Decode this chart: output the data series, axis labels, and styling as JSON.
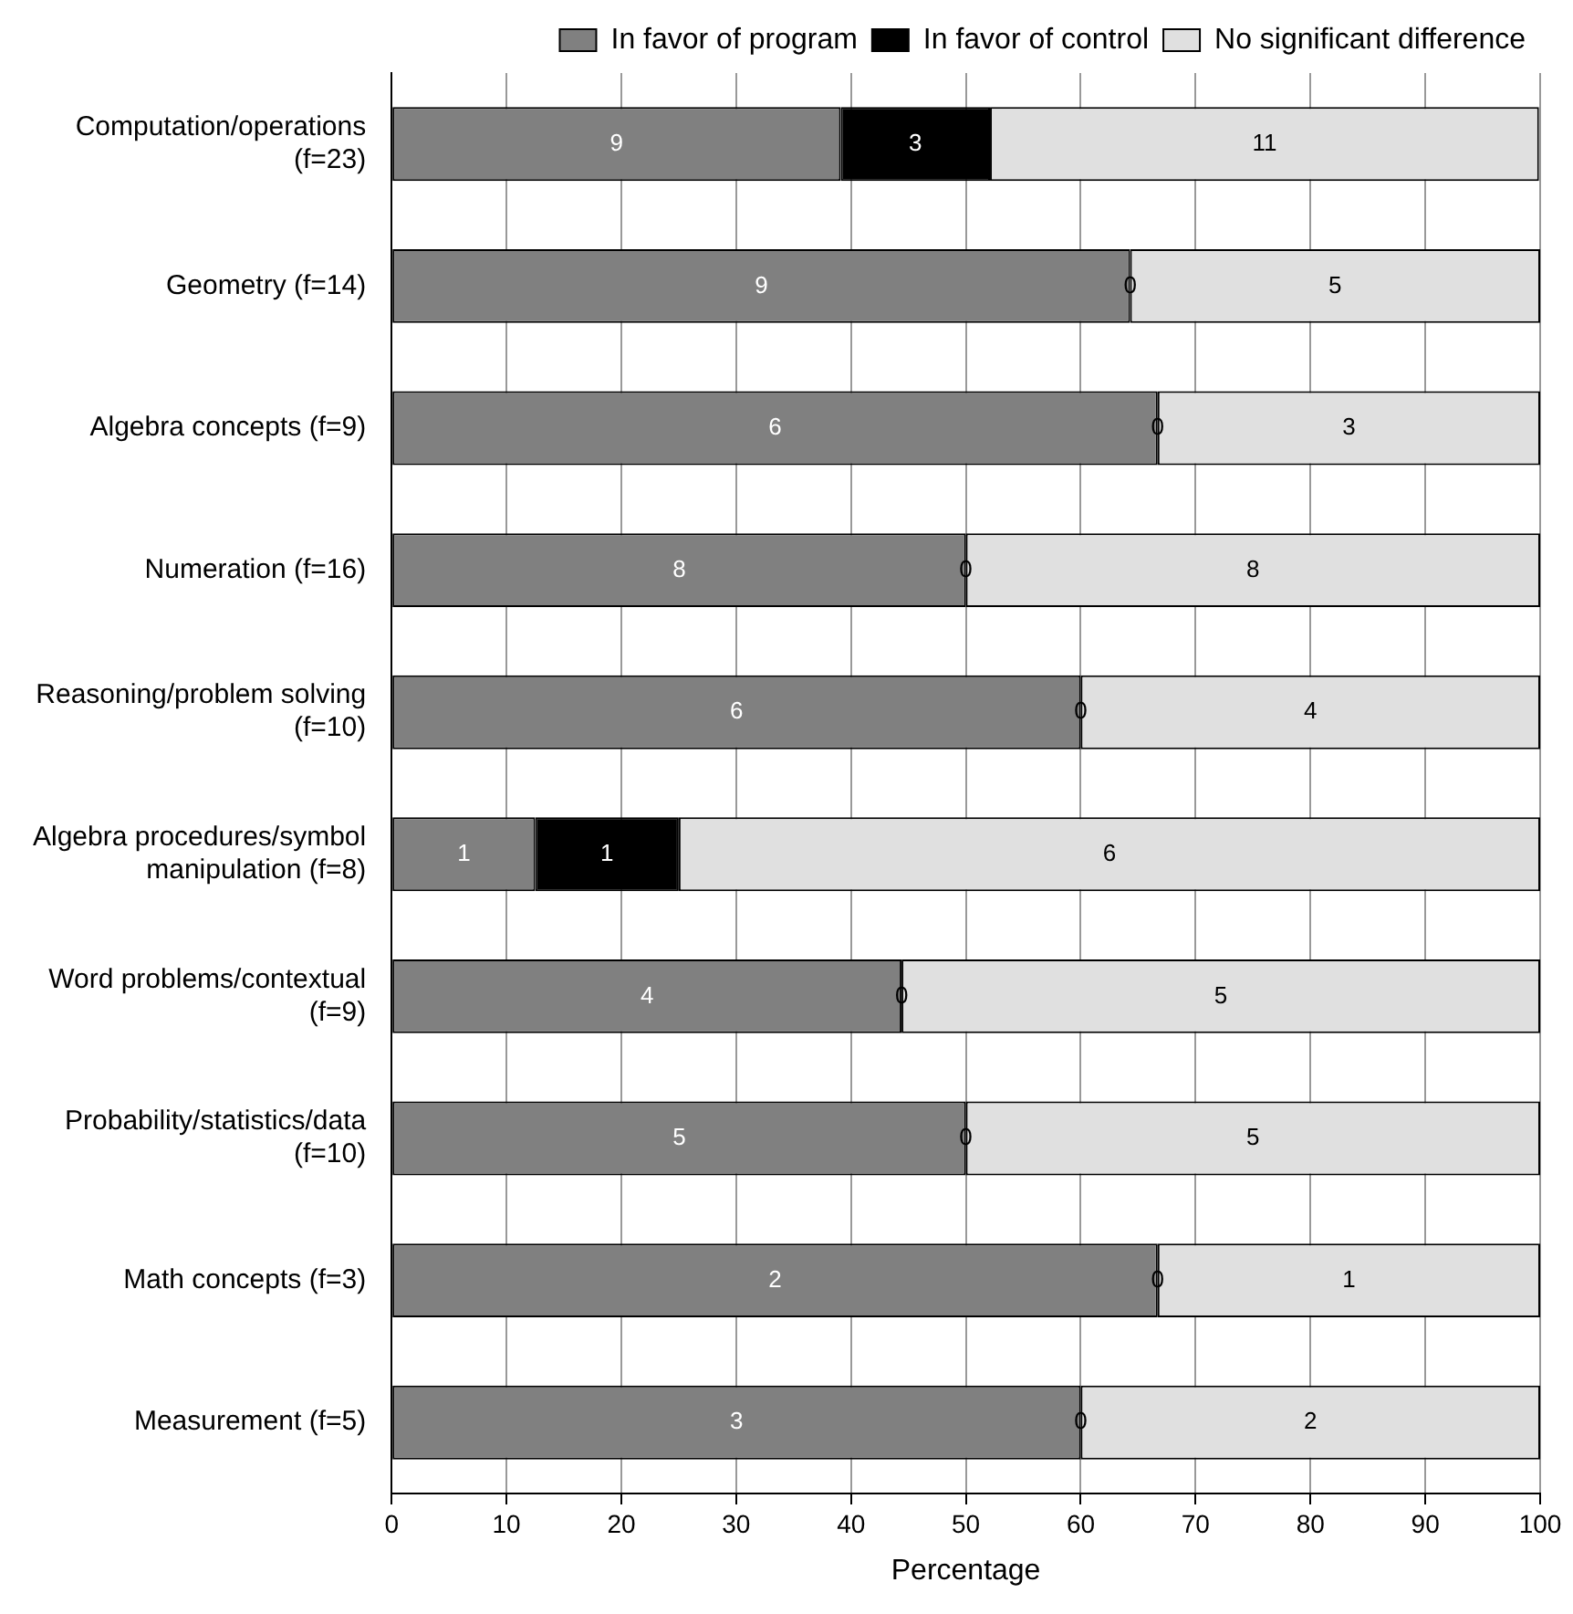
{
  "chart_data": {
    "type": "bar",
    "orientation": "horizontal",
    "stacked": true,
    "xlabel": "Percentage",
    "categories": [
      "Computation/operations\n(f=23)",
      "Geometry (f=14)",
      "Algebra concepts (f=9)",
      "Numeration (f=16)",
      "Reasoning/problem solving\n(f=10)",
      "Algebra procedures/symbol\nmanipulation (f=8)",
      "Word problems/contextual\n(f=9)",
      "Probability/statistics/data\n(f=10)",
      "Math concepts (f=3)",
      "Measurement (f=5)"
    ],
    "series": [
      {
        "name": "In favor of program",
        "color": "#808080",
        "values": [
          39.1,
          64.3,
          66.7,
          50,
          60,
          12.5,
          44.4,
          50,
          66.7,
          60
        ]
      },
      {
        "name": "In favor of control",
        "color": "#000000",
        "values": [
          13.0,
          0,
          0,
          0,
          0,
          12.5,
          0,
          0,
          0,
          0
        ]
      },
      {
        "name": "No significant difference",
        "color": "#e0e0e0",
        "values": [
          47.8,
          35.7,
          33.3,
          50,
          40,
          75,
          55.6,
          50,
          33.3,
          40
        ]
      }
    ],
    "annotations": [
      "9",
      "3",
      "11",
      "9",
      "0",
      "5",
      "6",
      "0",
      "3",
      "8",
      "0",
      "8",
      "6",
      "0",
      "4",
      "1",
      "1",
      "6",
      "4",
      "0",
      "5",
      "5",
      "0",
      "5",
      "2",
      "0",
      "1",
      "3",
      "0",
      "2"
    ],
    "xlim": [
      0,
      100
    ],
    "xticks": [
      0,
      10,
      20,
      30,
      40,
      50,
      60,
      70,
      80,
      90,
      100
    ],
    "grid": "x",
    "legend": "top right"
  }
}
